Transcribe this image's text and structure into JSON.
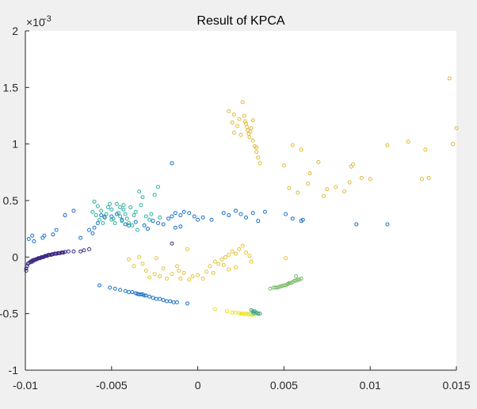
{
  "chart_data": {
    "type": "scatter",
    "title": "Result of KPCA",
    "xlabel": "",
    "ylabel": "",
    "xlim": [
      -0.01,
      0.015
    ],
    "ylim": [
      -1,
      2
    ],
    "y_exponent_label": "×10",
    "y_exponent_power": "-3",
    "x_ticks": [
      -0.01,
      -0.005,
      0,
      0.005,
      0.01,
      0.015
    ],
    "x_tick_labels": [
      "-0.01",
      "-0.005",
      "0",
      "0.005",
      "0.01",
      "0.015"
    ],
    "y_ticks": [
      -1,
      -0.5,
      0,
      0.5,
      1,
      1.5,
      2
    ],
    "y_tick_labels": [
      "-1",
      "-0.5",
      "0",
      "0.5",
      "1",
      "1.5",
      "2"
    ],
    "grid": false,
    "legend": "none",
    "marker": "open-circle",
    "series": [
      {
        "color": "#3d2a84",
        "points": [
          [
            -0.00995,
            -0.1
          ],
          [
            -0.0099,
            -0.08
          ],
          [
            -0.00985,
            -0.06
          ],
          [
            -0.00978,
            -0.05
          ],
          [
            -0.0097,
            -0.04
          ],
          [
            -0.0096,
            -0.03
          ],
          [
            -0.0095,
            -0.025
          ],
          [
            -0.0094,
            -0.02
          ],
          [
            -0.0093,
            -0.015
          ],
          [
            -0.0092,
            -0.01
          ],
          [
            -0.0091,
            -0.005
          ],
          [
            -0.009,
            0.0
          ],
          [
            -0.0089,
            0.005
          ],
          [
            -0.0088,
            0.01
          ],
          [
            -0.0087,
            0.015
          ],
          [
            -0.0086,
            0.02
          ],
          [
            -0.0085,
            0.02
          ],
          [
            -0.0084,
            0.025
          ],
          [
            -0.0083,
            0.03
          ],
          [
            -0.0082,
            0.03
          ],
          [
            -0.0081,
            0.035
          ],
          [
            -0.008,
            0.035
          ],
          [
            -0.0079,
            0.04
          ],
          [
            -0.0078,
            0.04
          ],
          [
            -0.0077,
            0.045
          ],
          [
            -0.0075,
            0.05
          ],
          [
            -0.0072,
            0.05
          ],
          [
            -0.0068,
            0.05
          ],
          [
            -0.0066,
            0.06
          ],
          [
            -0.0063,
            0.07
          ],
          [
            -0.00965,
            -0.045
          ],
          [
            -0.00955,
            -0.035
          ],
          [
            -0.00945,
            -0.025
          ],
          [
            -0.00935,
            -0.02
          ],
          [
            -0.00925,
            -0.01
          ],
          [
            -0.00915,
            -0.01
          ],
          [
            -0.00905,
            0.0
          ],
          [
            -0.00895,
            0.0
          ],
          [
            -0.00885,
            0.01
          ],
          [
            -0.00875,
            0.01
          ],
          [
            -0.00865,
            0.02
          ],
          [
            -0.00845,
            0.025
          ],
          [
            -0.00825,
            0.03
          ],
          [
            -0.00805,
            0.035
          ],
          [
            -0.00785,
            0.04
          ],
          [
            -0.0015,
            0.12
          ],
          [
            -0.00995,
            -0.12
          ]
        ]
      },
      {
        "color": "#1a71c6",
        "points": [
          [
            -0.0098,
            0.16
          ],
          [
            -0.0096,
            0.19
          ],
          [
            -0.0095,
            0.14
          ],
          [
            -0.009,
            0.17
          ],
          [
            -0.0089,
            0.19
          ],
          [
            -0.0082,
            0.24
          ],
          [
            -0.0084,
            0.2
          ],
          [
            -0.0077,
            0.37
          ],
          [
            -0.0072,
            0.41
          ],
          [
            -0.0068,
            0.17
          ],
          [
            -0.0063,
            0.24
          ],
          [
            -0.0061,
            0.21
          ],
          [
            -0.006,
            0.26
          ],
          [
            -0.0058,
            0.3
          ],
          [
            -0.0056,
            0.37
          ],
          [
            -0.0054,
            0.35
          ],
          [
            -0.005,
            0.36
          ],
          [
            -0.0047,
            0.38
          ],
          [
            -0.0044,
            0.33
          ],
          [
            -0.0042,
            0.29
          ],
          [
            -0.004,
            0.28
          ],
          [
            -0.0036,
            0.31
          ],
          [
            -0.0031,
            0.28
          ],
          [
            -0.0029,
            0.25
          ],
          [
            -0.0026,
            0.32
          ],
          [
            -0.0023,
            0.3
          ],
          [
            -0.002,
            0.29
          ],
          [
            -0.0017,
            0.34
          ],
          [
            -0.0015,
            0.36
          ],
          [
            -0.0013,
            0.39
          ],
          [
            -0.001,
            0.37
          ],
          [
            -0.0008,
            0.4
          ],
          [
            -0.0005,
            0.39
          ],
          [
            -0.0002,
            0.36
          ],
          [
            0.0,
            0.33
          ],
          [
            0.0003,
            0.35
          ],
          [
            0.0008,
            0.33
          ],
          [
            0.0015,
            0.39
          ],
          [
            0.0018,
            0.37
          ],
          [
            0.0022,
            0.41
          ],
          [
            0.0025,
            0.38
          ],
          [
            0.0028,
            0.35
          ],
          [
            0.0032,
            0.39
          ],
          [
            0.0035,
            0.32
          ],
          [
            0.0039,
            0.4
          ],
          [
            0.0051,
            0.38
          ],
          [
            0.0055,
            0.34
          ],
          [
            0.006,
            0.32
          ],
          [
            0.0061,
            0.33
          ],
          [
            0.0092,
            0.29
          ],
          [
            0.011,
            0.29
          ],
          [
            -0.0015,
            0.83
          ],
          [
            -0.0013,
            0.26
          ],
          [
            -0.001,
            0.27
          ],
          [
            -0.0057,
            -0.25
          ],
          [
            -0.0051,
            -0.27
          ],
          [
            -0.0048,
            -0.28
          ],
          [
            -0.0045,
            -0.29
          ],
          [
            -0.0042,
            -0.3
          ],
          [
            -0.004,
            -0.31
          ],
          [
            -0.0038,
            -0.31
          ],
          [
            -0.0036,
            -0.32
          ],
          [
            -0.0034,
            -0.33
          ],
          [
            -0.0032,
            -0.33
          ],
          [
            -0.003,
            -0.34
          ],
          [
            -0.0028,
            -0.35
          ],
          [
            -0.0026,
            -0.36
          ],
          [
            -0.0024,
            -0.37
          ],
          [
            -0.0022,
            -0.37
          ],
          [
            -0.002,
            -0.38
          ],
          [
            -0.0018,
            -0.39
          ],
          [
            -0.0016,
            -0.39
          ],
          [
            -0.0014,
            -0.4
          ],
          [
            -0.0012,
            -0.4
          ],
          [
            -0.0006,
            -0.41
          ],
          [
            -0.0035,
            -0.325
          ],
          [
            -0.0033,
            -0.33
          ],
          [
            -0.0031,
            -0.34
          ]
        ]
      },
      {
        "color": "#2fb0a3",
        "points": [
          [
            -0.006,
            0.49
          ],
          [
            -0.0058,
            0.45
          ],
          [
            -0.0061,
            0.4
          ],
          [
            -0.0059,
            0.37
          ],
          [
            -0.0057,
            0.33
          ],
          [
            -0.0055,
            0.3
          ],
          [
            -0.0053,
            0.38
          ],
          [
            -0.0052,
            0.44
          ],
          [
            -0.005,
            0.42
          ],
          [
            -0.0049,
            0.34
          ],
          [
            -0.0048,
            0.3
          ],
          [
            -0.0047,
            0.47
          ],
          [
            -0.0046,
            0.39
          ],
          [
            -0.0045,
            0.36
          ],
          [
            -0.0044,
            0.32
          ],
          [
            -0.0043,
            0.42
          ],
          [
            -0.0042,
            0.38
          ],
          [
            -0.0041,
            0.34
          ],
          [
            -0.004,
            0.3
          ],
          [
            -0.0039,
            0.44
          ],
          [
            -0.0038,
            0.28
          ],
          [
            -0.0037,
            0.37
          ],
          [
            -0.0036,
            0.4
          ],
          [
            -0.0035,
            0.24
          ],
          [
            -0.0034,
            0.58
          ],
          [
            -0.0033,
            0.46
          ],
          [
            -0.0032,
            0.53
          ],
          [
            -0.003,
            0.36
          ],
          [
            -0.0028,
            0.33
          ],
          [
            -0.0027,
            0.38
          ],
          [
            -0.0025,
            0.55
          ],
          [
            -0.0023,
            0.62
          ],
          [
            -0.0022,
            0.35
          ],
          [
            -0.0056,
            0.41
          ],
          [
            -0.0054,
            0.36
          ],
          [
            -0.0051,
            0.47
          ],
          [
            -0.005,
            0.33
          ],
          [
            -0.0045,
            0.44
          ],
          [
            -0.0043,
            0.46
          ]
        ]
      },
      {
        "color": "#e1b93c",
        "points": [
          [
            0.0018,
            1.29
          ],
          [
            0.0021,
            1.26
          ],
          [
            0.0024,
            1.22
          ],
          [
            0.0026,
            1.37
          ],
          [
            0.0027,
            1.25
          ],
          [
            0.00275,
            1.2
          ],
          [
            0.0028,
            1.18
          ],
          [
            0.00285,
            1.15
          ],
          [
            0.0029,
            1.12
          ],
          [
            0.00295,
            1.09
          ],
          [
            0.003,
            1.06
          ],
          [
            0.00305,
            1.11
          ],
          [
            0.0031,
            1.14
          ],
          [
            0.0032,
            1.03
          ],
          [
            0.0033,
            0.98
          ],
          [
            0.0034,
            0.93
          ],
          [
            0.0035,
            0.88
          ],
          [
            0.0036,
            0.83
          ],
          [
            0.0025,
            1.08
          ],
          [
            0.0023,
            1.16
          ],
          [
            0.0021,
            1.1
          ],
          [
            0.002,
            1.19
          ],
          [
            0.0034,
            0.97
          ],
          [
            0.0032,
            1.21
          ],
          [
            0.005,
            0.81
          ],
          [
            0.0055,
            0.99
          ],
          [
            0.006,
            0.95
          ],
          [
            0.0065,
            0.74
          ],
          [
            0.007,
            0.84
          ],
          [
            0.0053,
            0.61
          ],
          [
            0.0058,
            0.57
          ],
          [
            0.0064,
            0.65
          ],
          [
            0.0073,
            0.54
          ],
          [
            0.0075,
            0.6
          ],
          [
            0.008,
            0.62
          ],
          [
            0.0085,
            0.58
          ],
          [
            0.0088,
            0.66
          ],
          [
            0.009,
            0.82
          ],
          [
            0.0095,
            0.7
          ],
          [
            0.01,
            0.69
          ],
          [
            0.011,
            0.99
          ],
          [
            0.0122,
            1.02
          ],
          [
            0.013,
            0.69
          ],
          [
            0.0132,
            0.95
          ],
          [
            0.0134,
            0.7
          ],
          [
            0.0146,
            1.58
          ],
          [
            0.0148,
            1.0
          ],
          [
            0.015,
            1.14
          ],
          [
            0.0089,
            0.8
          ]
        ]
      },
      {
        "color": "#e6c33c",
        "points": [
          [
            -0.004,
            -0.02
          ],
          [
            -0.0037,
            -0.08
          ],
          [
            -0.0034,
            0.0
          ],
          [
            -0.0032,
            -0.06
          ],
          [
            -0.003,
            -0.12
          ],
          [
            -0.0028,
            -0.18
          ],
          [
            -0.0025,
            -0.15
          ],
          [
            -0.0022,
            -0.17
          ],
          [
            -0.002,
            -0.1
          ],
          [
            -0.0018,
            -0.19
          ],
          [
            -0.0015,
            -0.15
          ],
          [
            -0.0012,
            -0.08
          ],
          [
            -0.001,
            -0.19
          ],
          [
            -0.0008,
            -0.14
          ],
          [
            -0.0005,
            -0.2
          ],
          [
            -0.0003,
            -0.17
          ],
          [
            0.0,
            -0.16
          ],
          [
            0.0003,
            -0.19
          ],
          [
            0.0005,
            -0.13
          ],
          [
            0.0007,
            -0.08
          ],
          [
            0.001,
            -0.04
          ],
          [
            0.0012,
            -0.06
          ],
          [
            0.0014,
            -0.02
          ],
          [
            0.0016,
            0.0
          ],
          [
            0.0018,
            0.02
          ],
          [
            0.002,
            0.05
          ],
          [
            0.0022,
            0.03
          ],
          [
            0.0024,
            0.07
          ],
          [
            0.0026,
            0.1
          ],
          [
            0.0028,
            0.04
          ],
          [
            0.003,
            0.01
          ],
          [
            0.0022,
            -0.09
          ],
          [
            0.0018,
            -0.11
          ],
          [
            0.0015,
            -0.07
          ],
          [
            -0.0006,
            0.07
          ],
          [
            0.0031,
            -0.04
          ],
          [
            0.0051,
            -0.01
          ],
          [
            -0.0024,
            -0.01
          ],
          [
            -0.0011,
            -0.12
          ],
          [
            0.0009,
            -0.14
          ]
        ]
      },
      {
        "color": "#e8e320",
        "points": [
          [
            0.001,
            -0.46
          ],
          [
            0.0017,
            -0.48
          ],
          [
            0.002,
            -0.49
          ],
          [
            0.0022,
            -0.49
          ],
          [
            0.0024,
            -0.495
          ],
          [
            0.0026,
            -0.5
          ],
          [
            0.0028,
            -0.5
          ],
          [
            0.0029,
            -0.505
          ],
          [
            0.003,
            -0.505
          ],
          [
            0.0031,
            -0.51
          ],
          [
            0.0032,
            -0.51
          ],
          [
            0.0033,
            -0.505
          ],
          [
            0.0034,
            -0.5
          ],
          [
            0.0025,
            -0.5
          ],
          [
            0.0027,
            -0.505
          ]
        ]
      },
      {
        "color": "#7dbb6a",
        "points": [
          [
            0.0042,
            -0.28
          ],
          [
            0.0044,
            -0.27
          ],
          [
            0.0046,
            -0.27
          ],
          [
            0.0048,
            -0.26
          ],
          [
            0.005,
            -0.25
          ],
          [
            0.0051,
            -0.25
          ],
          [
            0.0052,
            -0.24
          ],
          [
            0.0053,
            -0.23
          ],
          [
            0.0054,
            -0.23
          ],
          [
            0.0055,
            -0.22
          ],
          [
            0.0056,
            -0.21
          ],
          [
            0.0057,
            -0.21
          ],
          [
            0.0058,
            -0.2
          ],
          [
            0.0059,
            -0.2
          ],
          [
            0.006,
            -0.19
          ],
          [
            0.0057,
            -0.17
          ],
          [
            0.0045,
            -0.27
          ],
          [
            0.0047,
            -0.265
          ],
          [
            0.0049,
            -0.255
          ],
          [
            0.00525,
            -0.235
          ]
        ]
      },
      {
        "color": "#36a18a",
        "points": [
          [
            0.0031,
            -0.47
          ],
          [
            0.0032,
            -0.48
          ],
          [
            0.0033,
            -0.48
          ],
          [
            0.0034,
            -0.49
          ],
          [
            0.0035,
            -0.5
          ],
          [
            0.0036,
            -0.5
          ],
          [
            0.00325,
            -0.495
          ]
        ]
      }
    ]
  }
}
